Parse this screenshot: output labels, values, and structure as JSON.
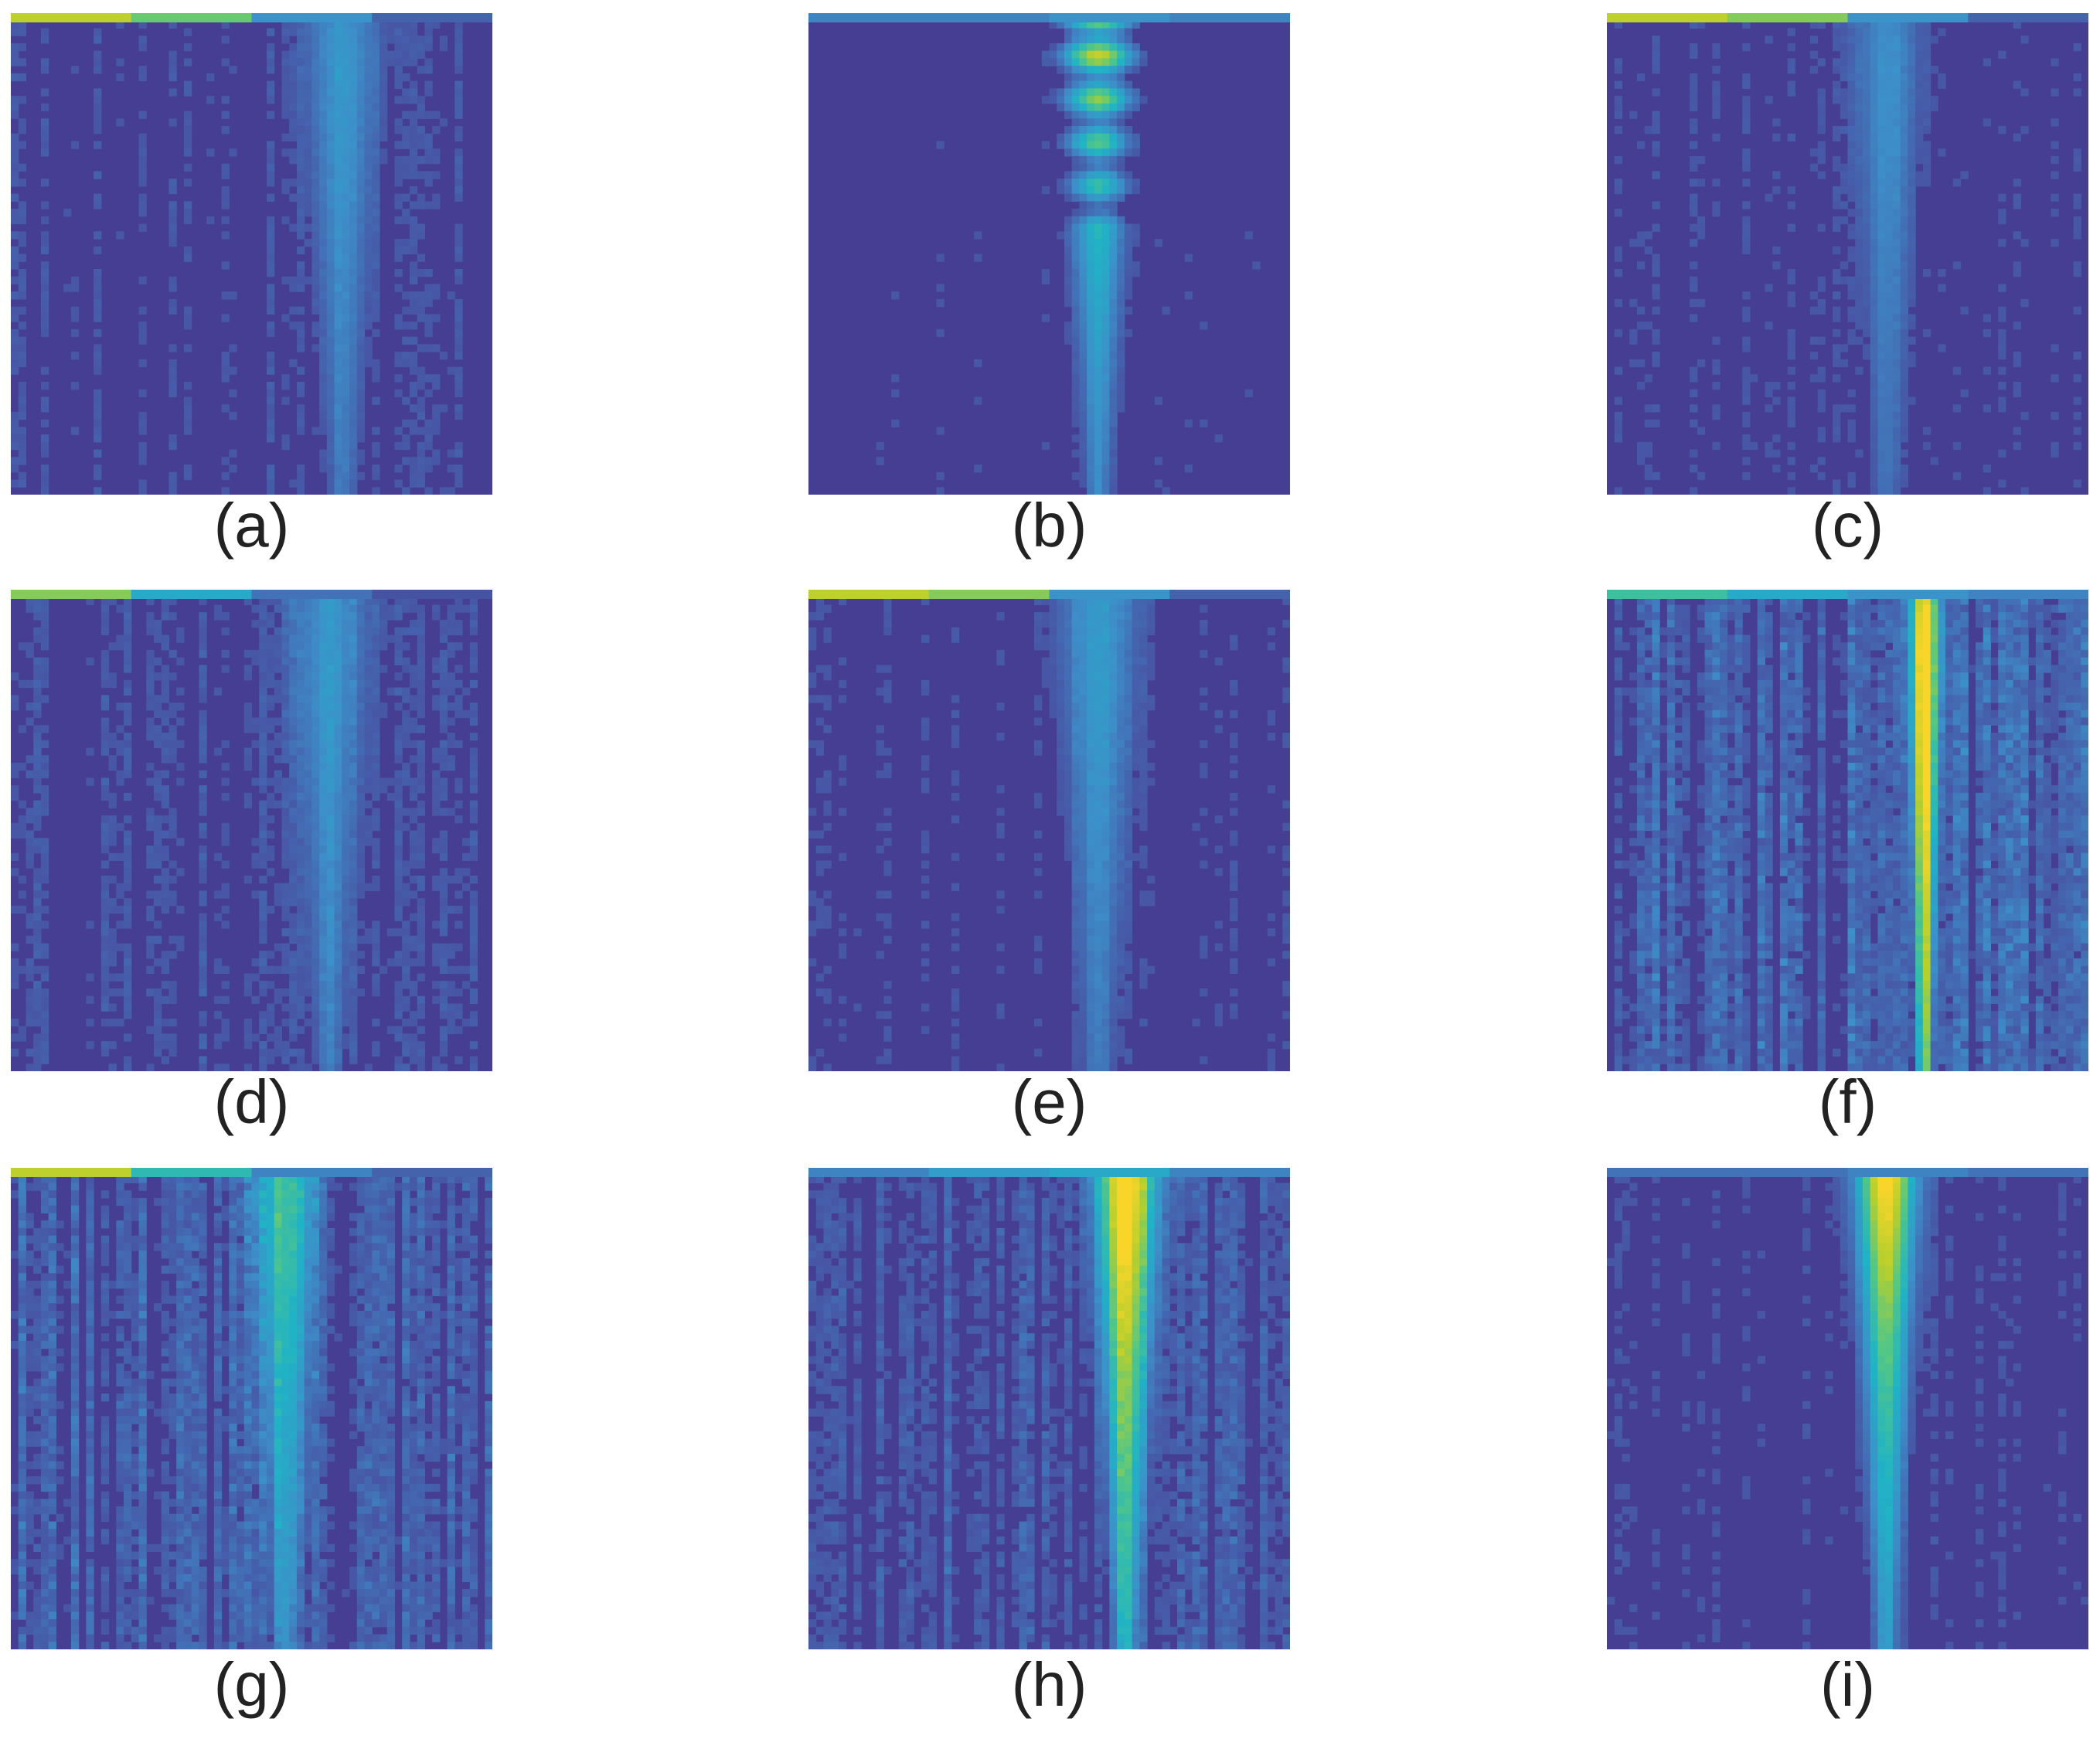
{
  "colors": {
    "background": "#453e92",
    "colormap": [
      "#3e2f8a",
      "#4757a6",
      "#3d8fc9",
      "#20b3c6",
      "#54c785",
      "#b6cf2d",
      "#f9d52a"
    ]
  },
  "chart_data": [
    {
      "type": "heatmap",
      "label": "(a)",
      "top_stripe": [
        0.85,
        0.7,
        0.35,
        0.2
      ],
      "beam_x": 0.69,
      "beam_peak": 0.2,
      "beam_spread": 0.07,
      "beam_tail": 0.17,
      "noise": 0.05
    },
    {
      "type": "heatmap",
      "label": "(b)",
      "top_stripe": [
        0.3,
        0.3,
        0.35,
        0.3
      ],
      "beam_x": 0.6,
      "beam_peak": 0.85,
      "beam_spread": 0.06,
      "beam_tail": 0.2,
      "noise": 0.03,
      "fringes": true
    },
    {
      "type": "heatmap",
      "label": "(c)",
      "top_stripe": [
        0.85,
        0.75,
        0.35,
        0.2
      ],
      "beam_x": 0.58,
      "beam_peak": 0.18,
      "beam_spread": 0.06,
      "beam_tail": 0.16,
      "noise": 0.04
    },
    {
      "type": "heatmap",
      "label": "(d)",
      "top_stripe": [
        0.75,
        0.45,
        0.25,
        0.15
      ],
      "beam_x": 0.66,
      "beam_peak": 0.2,
      "beam_spread": 0.07,
      "beam_tail": 0.17,
      "noise": 0.06
    },
    {
      "type": "heatmap",
      "label": "(e)",
      "top_stripe": [
        0.85,
        0.75,
        0.35,
        0.2
      ],
      "beam_x": 0.6,
      "beam_peak": 0.22,
      "beam_spread": 0.07,
      "beam_tail": 0.17,
      "noise": 0.04
    },
    {
      "type": "heatmap",
      "label": "(f)",
      "top_stripe": [
        0.6,
        0.45,
        0.35,
        0.3
      ],
      "beam_x": 0.66,
      "beam_peak": 0.8,
      "beam_spread": 0.02,
      "beam_tail": 0.85,
      "noise": 0.14
    },
    {
      "type": "heatmap",
      "label": "(g)",
      "top_stripe": [
        0.85,
        0.55,
        0.3,
        0.2
      ],
      "beam_x": 0.57,
      "beam_peak": 0.45,
      "beam_spread": 0.05,
      "beam_tail": 0.3,
      "noise": 0.12
    },
    {
      "type": "heatmap",
      "label": "(h)",
      "top_stripe": [
        0.3,
        0.4,
        0.45,
        0.3
      ],
      "beam_x": 0.66,
      "beam_peak": 0.95,
      "beam_spread": 0.05,
      "beam_tail": 0.45,
      "noise": 0.1
    },
    {
      "type": "heatmap",
      "label": "(i)",
      "top_stripe": [
        0.25,
        0.25,
        0.3,
        0.25
      ],
      "beam_x": 0.58,
      "beam_peak": 0.9,
      "beam_spread": 0.05,
      "beam_tail": 0.3,
      "noise": 0.04
    }
  ]
}
